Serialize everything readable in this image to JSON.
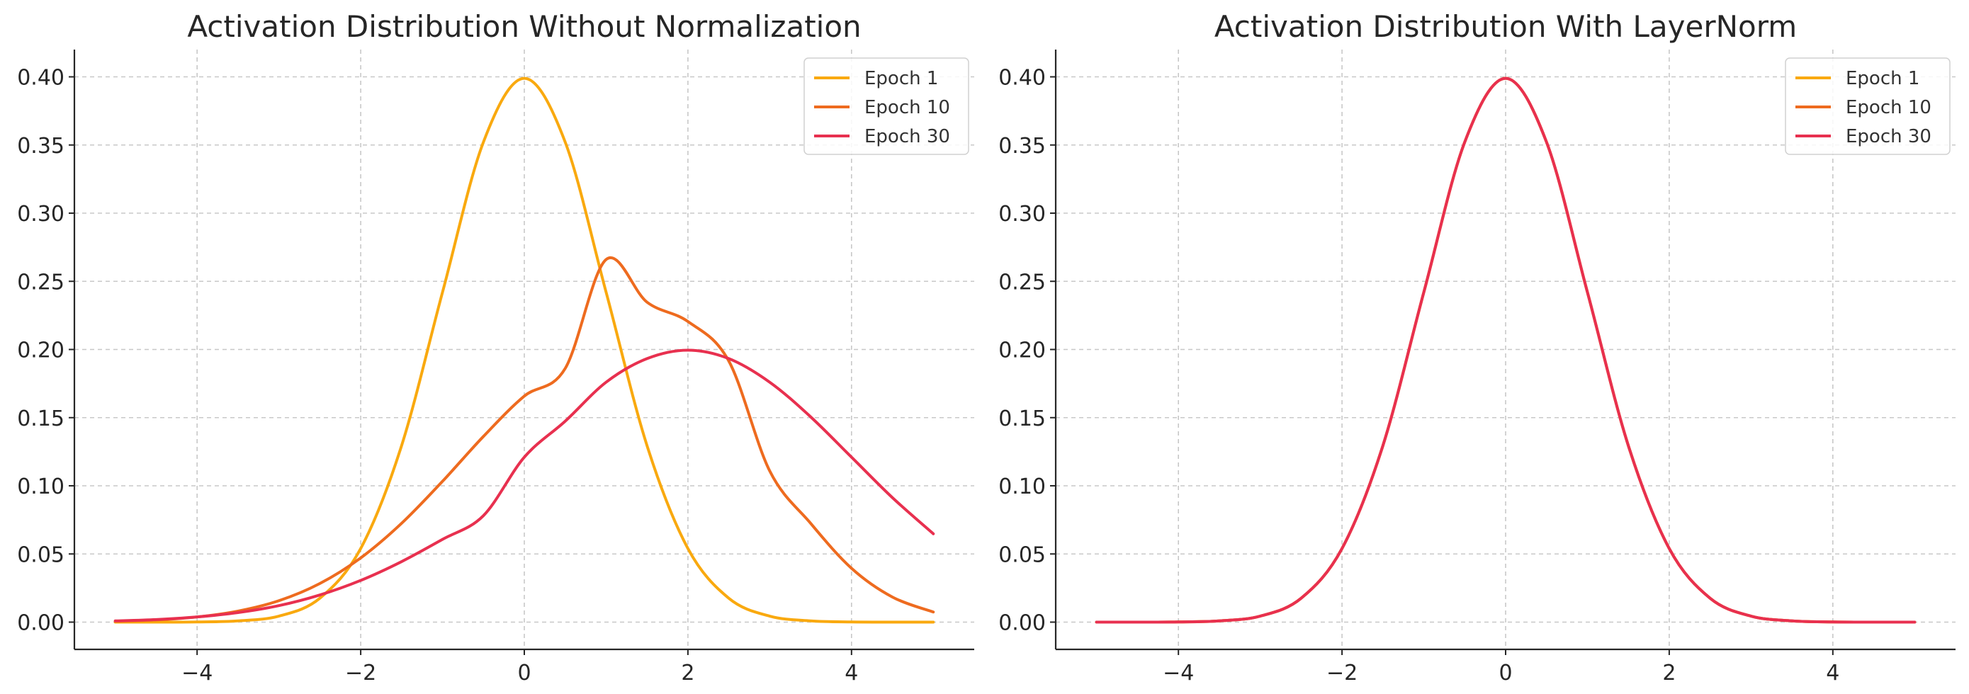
{
  "chart_data": [
    {
      "type": "line",
      "title": "Activation Distribution Without Normalization",
      "xlabel": "",
      "ylabel": "",
      "xlim": [
        -5.5,
        5.5
      ],
      "ylim": [
        -0.02,
        0.42
      ],
      "xticks": [
        -4,
        -2,
        0,
        2,
        4
      ],
      "xtick_labels": [
        "−4",
        "−2",
        "0",
        "2",
        "4"
      ],
      "yticks": [
        0.0,
        0.05,
        0.1,
        0.15,
        0.2,
        0.25,
        0.3,
        0.35,
        0.4
      ],
      "ytick_labels": [
        "0.00",
        "0.05",
        "0.10",
        "0.15",
        "0.20",
        "0.25",
        "0.30",
        "0.35",
        "0.40"
      ],
      "grid": true,
      "legend_position": "top-right",
      "x": [
        -5,
        -4.5,
        -4,
        -3.5,
        -3,
        -2.5,
        -2,
        -1.5,
        -1,
        -0.5,
        0,
        0.5,
        1,
        1.5,
        2,
        2.5,
        3,
        3.5,
        4,
        4.5,
        5
      ],
      "series": [
        {
          "name": "Epoch 1",
          "color": "#f9a90f",
          "values": [
            0.0,
            0.0,
            0.0001,
            0.0009,
            0.0044,
            0.0175,
            0.054,
            0.1295,
            0.242,
            0.3521,
            0.3989,
            0.3521,
            0.242,
            0.1295,
            0.054,
            0.0175,
            0.0044,
            0.0009,
            0.0001,
            0.0,
            0.0
          ]
        },
        {
          "name": "Epoch 10",
          "color": "#ee6b1f",
          "values": [
            0.0007,
            0.0016,
            0.0038,
            0.0081,
            0.0157,
            0.0283,
            0.0471,
            0.0725,
            0.1033,
            0.1362,
            0.1658,
            0.1861,
            0.266,
            0.2347,
            0.2205,
            0.1915,
            0.1109,
            0.0725,
            0.0395,
            0.0184,
            0.0074
          ]
        },
        {
          "name": "Epoch 30",
          "color": "#e8304f",
          "values": [
            0.0009,
            0.0019,
            0.0038,
            0.007,
            0.0121,
            0.0199,
            0.0306,
            0.0444,
            0.0607,
            0.0781,
            0.121,
            0.1474,
            0.176,
            0.1933,
            0.1995,
            0.1933,
            0.176,
            0.1506,
            0.121,
            0.0913,
            0.0648
          ]
        }
      ]
    },
    {
      "type": "line",
      "title": "Activation Distribution With LayerNorm",
      "xlabel": "",
      "ylabel": "",
      "xlim": [
        -5.5,
        5.5
      ],
      "ylim": [
        -0.02,
        0.42
      ],
      "xticks": [
        -4,
        -2,
        0,
        2,
        4
      ],
      "xtick_labels": [
        "−4",
        "−2",
        "0",
        "2",
        "4"
      ],
      "yticks": [
        0.0,
        0.05,
        0.1,
        0.15,
        0.2,
        0.25,
        0.3,
        0.35,
        0.4
      ],
      "ytick_labels": [
        "0.00",
        "0.05",
        "0.10",
        "0.15",
        "0.20",
        "0.25",
        "0.30",
        "0.35",
        "0.40"
      ],
      "grid": true,
      "legend_position": "top-right",
      "x": [
        -5,
        -4.5,
        -4,
        -3.5,
        -3,
        -2.5,
        -2,
        -1.5,
        -1,
        -0.5,
        0,
        0.5,
        1,
        1.5,
        2,
        2.5,
        3,
        3.5,
        4,
        4.5,
        5
      ],
      "series": [
        {
          "name": "Epoch 1",
          "color": "#f9a90f",
          "values": [
            0.0,
            0.0,
            0.0001,
            0.0009,
            0.0044,
            0.0175,
            0.054,
            0.1295,
            0.242,
            0.3521,
            0.3989,
            0.3521,
            0.242,
            0.1295,
            0.054,
            0.0175,
            0.0044,
            0.0009,
            0.0001,
            0.0,
            0.0
          ]
        },
        {
          "name": "Epoch 10",
          "color": "#ee6b1f",
          "values": [
            0.0,
            0.0,
            0.0001,
            0.0009,
            0.0044,
            0.0175,
            0.054,
            0.1295,
            0.242,
            0.3521,
            0.3989,
            0.3521,
            0.242,
            0.1295,
            0.054,
            0.0175,
            0.0044,
            0.0009,
            0.0001,
            0.0,
            0.0
          ]
        },
        {
          "name": "Epoch 30",
          "color": "#e8304f",
          "values": [
            0.0,
            0.0,
            0.0001,
            0.0009,
            0.0044,
            0.0175,
            0.054,
            0.1295,
            0.242,
            0.3521,
            0.3989,
            0.3521,
            0.242,
            0.1295,
            0.054,
            0.0175,
            0.0044,
            0.0009,
            0.0001,
            0.0,
            0.0
          ]
        }
      ]
    }
  ]
}
